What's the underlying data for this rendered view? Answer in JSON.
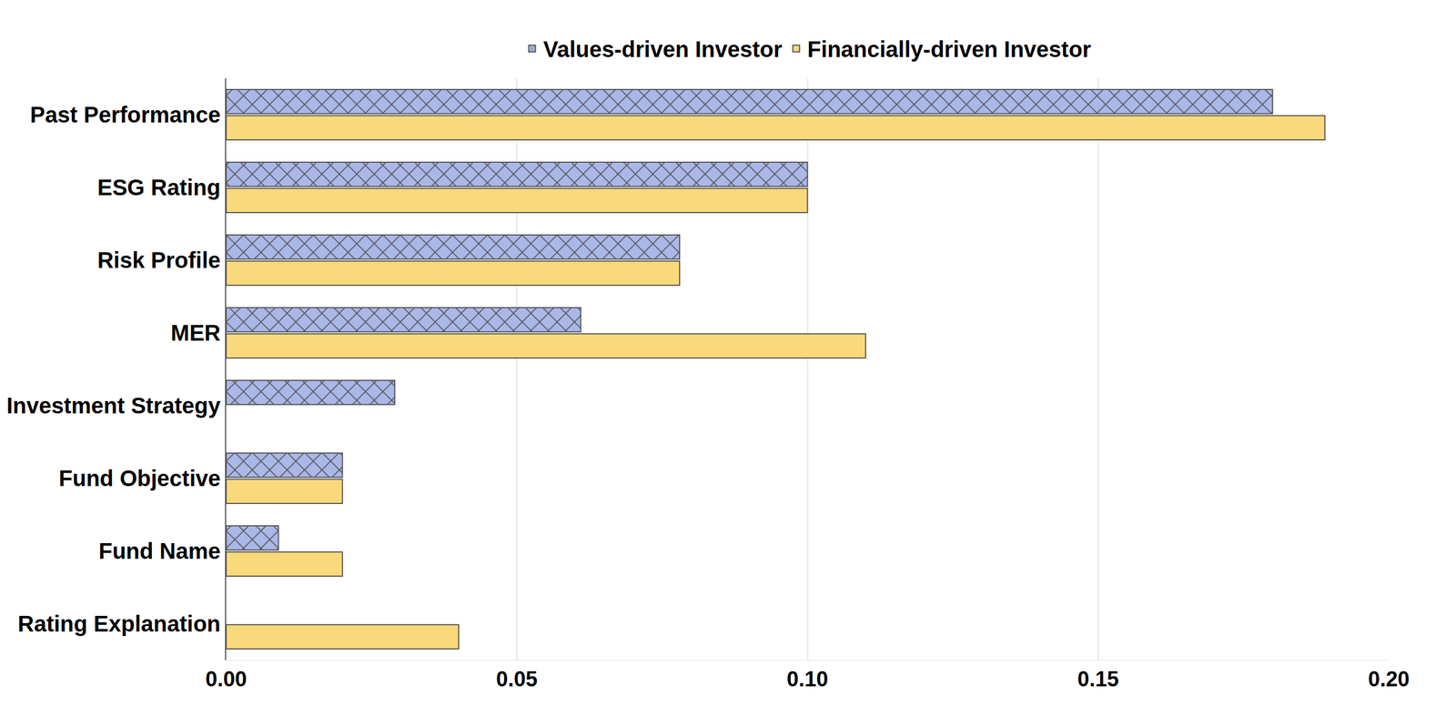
{
  "chart_data": {
    "type": "bar",
    "orientation": "horizontal",
    "categories": [
      "Past Performance",
      "ESG Rating",
      "Risk Profile",
      "MER",
      "Investment Strategy",
      "Fund Objective",
      "Fund Name",
      "Rating Explanation"
    ],
    "series": [
      {
        "name": "Values-driven Investor",
        "color": "#aab8e8",
        "marker": "x",
        "values": [
          0.18,
          0.1,
          0.078,
          0.061,
          0.029,
          0.02,
          0.009,
          null
        ]
      },
      {
        "name": "Financially-driven Investor",
        "color": "#f9d97a",
        "values": [
          0.189,
          0.1,
          0.078,
          0.11,
          null,
          0.02,
          0.02,
          0.04
        ]
      }
    ],
    "xlim": [
      0,
      0.2
    ],
    "xticks": [
      {
        "value": 0,
        "label": "0.00"
      },
      {
        "value": 0.05,
        "label": "0.05"
      },
      {
        "value": 0.1,
        "label": "0.10"
      },
      {
        "value": 0.15,
        "label": "0.15"
      },
      {
        "value": 0.2,
        "label": "0.20"
      }
    ],
    "grid": true,
    "legend": "top"
  }
}
